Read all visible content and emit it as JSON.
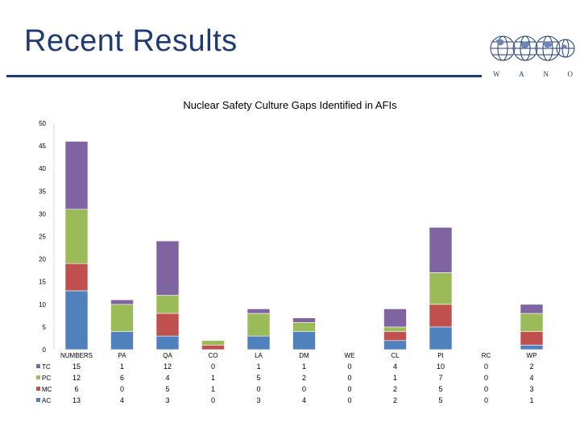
{
  "slide": {
    "title": "Recent Results",
    "logo_letters": [
      "W",
      "A",
      "N",
      "O"
    ]
  },
  "chart_data": {
    "type": "bar",
    "stacked": true,
    "title": "Nuclear Safety Culture Gaps Identified in AFIs",
    "xlabel": "",
    "ylabel": "",
    "ylim": [
      0,
      50
    ],
    "yticks": [
      0,
      5,
      10,
      15,
      20,
      25,
      30,
      35,
      40,
      45,
      50
    ],
    "grid": false,
    "legend": "data-table-left",
    "categories": [
      "NUMBERS",
      "PA",
      "QA",
      "CO",
      "LA",
      "DM",
      "WE",
      "CL",
      "PI",
      "RC",
      "WP"
    ],
    "series": [
      {
        "name": "AC",
        "color": "#4f81bd",
        "values": [
          13,
          4,
          3,
          0,
          3,
          4,
          0,
          2,
          5,
          0,
          1
        ]
      },
      {
        "name": "MC",
        "color": "#c0504d",
        "values": [
          6,
          0,
          5,
          1,
          0,
          0,
          0,
          2,
          5,
          0,
          3
        ]
      },
      {
        "name": "PC",
        "color": "#9bbb59",
        "values": [
          12,
          6,
          4,
          1,
          5,
          2,
          0,
          1,
          7,
          0,
          4
        ]
      },
      {
        "name": "TC",
        "color": "#8064a2",
        "values": [
          15,
          1,
          12,
          0,
          1,
          1,
          0,
          4,
          10,
          0,
          2
        ]
      }
    ],
    "table_order": [
      "TC",
      "PC",
      "MC",
      "AC"
    ]
  }
}
